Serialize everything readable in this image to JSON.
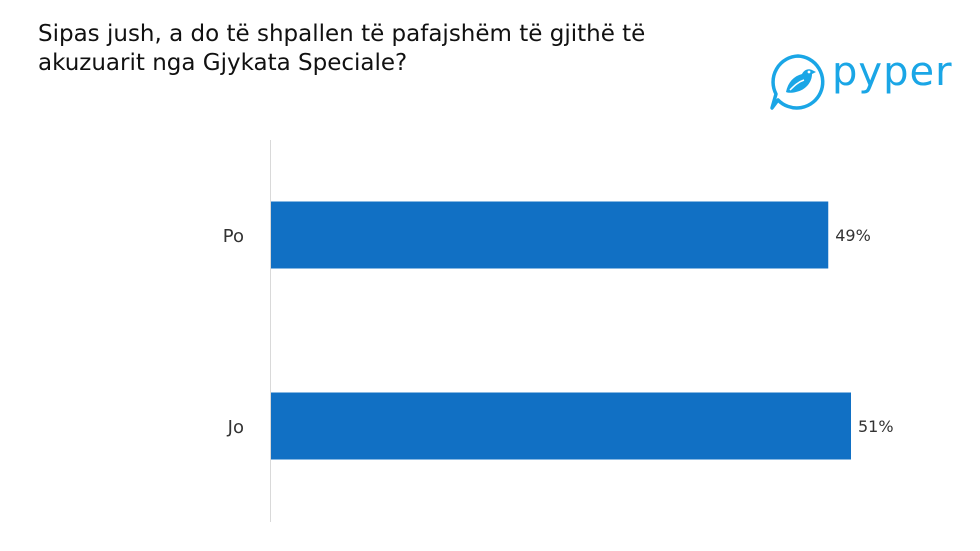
{
  "title_lines": [
    "Sipas jush, a do të shpallen të pafajshëm të gjithë të",
    "akuzuarit nga Gjykata Speciale?"
  ],
  "logo": {
    "text": "pyper",
    "icon": "bird-icon",
    "color": "#1aa6e6"
  },
  "chart_data": {
    "type": "bar",
    "orientation": "horizontal",
    "categories": [
      "Po",
      "Jo"
    ],
    "values": [
      49,
      51
    ],
    "value_labels": [
      "49%",
      "51%"
    ],
    "unit": "%",
    "title": "Sipas jush, a do të shpallen të pafajshëm të gjithë të akuzuarit nga Gjykata Speciale?",
    "xlabel": "",
    "ylabel": "",
    "xlim": [
      0,
      51
    ],
    "grid": false,
    "legend": "none",
    "bar_color": "#1170c4"
  }
}
